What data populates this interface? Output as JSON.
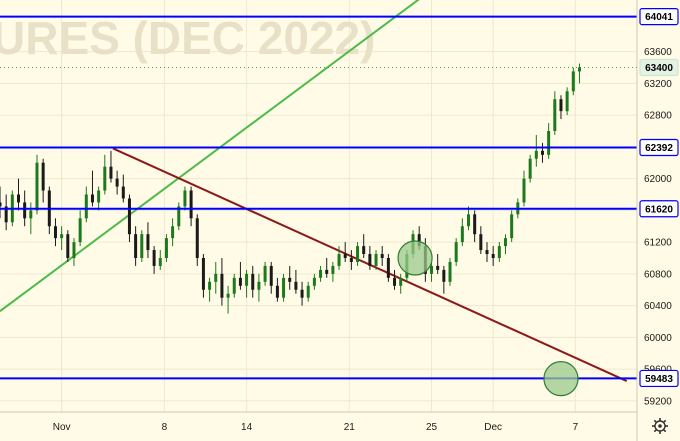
{
  "watermark": "URES (DEC 2022)",
  "chart_data": {
    "type": "candlestick",
    "colors": {
      "background": "#fffbe6",
      "up": "#1b7a1b",
      "down": "#1a1a1a",
      "level_line": "#0000ff",
      "trendline_up": "#4cbb4c",
      "trendline_down": "#8b1a1a",
      "circle_fill": "#9bc98b",
      "circle_stroke": "#2e7d32",
      "dotted_price_line": "#3aa05a",
      "watermark": "#e8e1c8"
    },
    "y_axis": {
      "position": "right",
      "ylim": [
        59060,
        64250
      ],
      "ticks": [
        59200,
        59600,
        60000,
        60400,
        60800,
        61200,
        61600,
        62000,
        62400,
        62800,
        63200,
        63600
      ]
    },
    "x_axis": {
      "labels": [
        {
          "label": "Nov",
          "index": 0
        },
        {
          "label": "8",
          "index": 5
        },
        {
          "label": "14",
          "index": 9
        },
        {
          "label": "21",
          "index": 14
        },
        {
          "label": "25",
          "index": 18
        },
        {
          "label": "Dec",
          "index": 21
        },
        {
          "label": "7",
          "index": 25
        }
      ],
      "index_range": [
        -3,
        28
      ]
    },
    "levels": [
      {
        "value": 64041,
        "label": "64041"
      },
      {
        "value": 62392,
        "label": "62392"
      },
      {
        "value": 61620,
        "label": "61620"
      },
      {
        "value": 59483,
        "label": "59483"
      }
    ],
    "last_price": {
      "value": 63400,
      "label": "63400"
    },
    "trendlines": [
      {
        "kind": "support",
        "from": {
          "index": -3,
          "value": 60330
        },
        "to": {
          "index": 17.6,
          "value": 64300
        }
      },
      {
        "kind": "resistance",
        "from": {
          "index": 2.5,
          "value": 62380
        },
        "to": {
          "index": 27.5,
          "value": 59450
        }
      }
    ],
    "circles": [
      {
        "index": 17.2,
        "value": 61000
      },
      {
        "index": 24.3,
        "value": 59480
      }
    ],
    "series": [
      {
        "values": [
          [
            -3,
            61700,
            61900,
            61500,
            61650
          ],
          [
            -2.7,
            61650,
            61800,
            61350,
            61450
          ],
          [
            -2.4,
            61450,
            61850,
            61400,
            61800
          ],
          [
            -2.1,
            61800,
            62000,
            61600,
            61700
          ],
          [
            -1.8,
            61700,
            61850,
            61400,
            61500
          ],
          [
            -1.5,
            61500,
            61700,
            61300,
            61600
          ],
          [
            -1.2,
            61600,
            62300,
            61550,
            62200
          ],
          [
            -0.9,
            62200,
            62250,
            61700,
            61850
          ],
          [
            -0.6,
            61850,
            61900,
            61300,
            61400
          ],
          [
            -0.3,
            61400,
            61500,
            61150,
            61250
          ],
          [
            0,
            61250,
            61400,
            61100,
            61300
          ],
          [
            0.3,
            61300,
            61350,
            60950,
            61000
          ],
          [
            0.6,
            61000,
            61250,
            60900,
            61200
          ],
          [
            0.9,
            61200,
            61600,
            61150,
            61500
          ],
          [
            1.2,
            61500,
            61900,
            61450,
            61800
          ],
          [
            1.5,
            61800,
            62100,
            61650,
            61700
          ],
          [
            1.8,
            61700,
            61900,
            61600,
            61850
          ],
          [
            2.1,
            61850,
            62300,
            61800,
            62150
          ],
          [
            2.4,
            62150,
            62350,
            61950,
            62000
          ],
          [
            2.7,
            62000,
            62100,
            61800,
            61900
          ],
          [
            3,
            61900,
            62050,
            61700,
            61750
          ],
          [
            3.3,
            61750,
            61800,
            61200,
            61300
          ],
          [
            3.6,
            61300,
            61400,
            60900,
            61000
          ],
          [
            3.9,
            61000,
            61350,
            60950,
            61300
          ],
          [
            4.2,
            61300,
            61450,
            61000,
            61100
          ],
          [
            4.5,
            61100,
            61150,
            60800,
            60900
          ],
          [
            4.8,
            60900,
            61100,
            60850,
            61000
          ],
          [
            5.1,
            61000,
            61300,
            60950,
            61250
          ],
          [
            5.4,
            61250,
            61500,
            61150,
            61400
          ],
          [
            5.7,
            61400,
            61700,
            61350,
            61650
          ],
          [
            6,
            61650,
            61900,
            61600,
            61850
          ],
          [
            6.3,
            61850,
            61900,
            61400,
            61500
          ],
          [
            6.6,
            61500,
            61550,
            60900,
            61000
          ],
          [
            6.9,
            61000,
            61050,
            60500,
            60600
          ],
          [
            7.2,
            60600,
            60750,
            60450,
            60700
          ],
          [
            7.5,
            60700,
            60950,
            60550,
            60800
          ],
          [
            7.8,
            60800,
            61000,
            60400,
            60500
          ],
          [
            8.1,
            60500,
            60650,
            60300,
            60550
          ],
          [
            8.4,
            60550,
            60800,
            60500,
            60750
          ],
          [
            8.7,
            60750,
            60950,
            60600,
            60650
          ],
          [
            9,
            60650,
            60850,
            60500,
            60800
          ],
          [
            9.3,
            60800,
            60900,
            60500,
            60600
          ],
          [
            9.6,
            60600,
            60800,
            60450,
            60700
          ],
          [
            9.9,
            60700,
            60950,
            60650,
            60900
          ],
          [
            10.2,
            60900,
            60950,
            60550,
            60650
          ],
          [
            10.5,
            60650,
            60750,
            60450,
            60500
          ],
          [
            10.8,
            60500,
            60800,
            60450,
            60750
          ],
          [
            11.1,
            60750,
            60900,
            60600,
            60700
          ],
          [
            11.4,
            60700,
            60850,
            60550,
            60600
          ],
          [
            11.7,
            60600,
            60700,
            60400,
            60500
          ],
          [
            12,
            60500,
            60700,
            60450,
            60650
          ],
          [
            12.3,
            60650,
            60800,
            60600,
            60750
          ],
          [
            12.6,
            60750,
            60900,
            60700,
            60850
          ],
          [
            12.9,
            60850,
            61000,
            60750,
            60800
          ],
          [
            13.2,
            60800,
            60950,
            60700,
            60900
          ],
          [
            13.5,
            60900,
            61150,
            60850,
            61050
          ],
          [
            13.8,
            61050,
            61200,
            60950,
            61000
          ],
          [
            14.1,
            61000,
            61100,
            60850,
            60950
          ],
          [
            14.4,
            60950,
            61200,
            60900,
            61150
          ],
          [
            14.7,
            61150,
            61300,
            61000,
            61050
          ],
          [
            15,
            61050,
            61150,
            60850,
            60900
          ],
          [
            15.3,
            60900,
            61100,
            60850,
            61050
          ],
          [
            15.6,
            61050,
            61150,
            60900,
            61000
          ],
          [
            15.9,
            61000,
            61050,
            60700,
            60750
          ],
          [
            16.2,
            60750,
            60850,
            60600,
            60650
          ],
          [
            16.5,
            60650,
            60800,
            60550,
            60750
          ],
          [
            16.8,
            60750,
            61100,
            60700,
            61050
          ],
          [
            17.1,
            61050,
            61350,
            61000,
            61300
          ],
          [
            17.4,
            61300,
            61400,
            61100,
            61150
          ],
          [
            17.7,
            61150,
            61250,
            60700,
            60800
          ],
          [
            18,
            60800,
            60950,
            60700,
            60900
          ],
          [
            18.3,
            60900,
            61050,
            60800,
            60850
          ],
          [
            18.6,
            60850,
            60900,
            60550,
            60700
          ],
          [
            18.9,
            60700,
            61000,
            60650,
            60950
          ],
          [
            19.2,
            60950,
            61250,
            60900,
            61200
          ],
          [
            19.5,
            61200,
            61500,
            61150,
            61400
          ],
          [
            19.8,
            61400,
            61650,
            61350,
            61550
          ],
          [
            20.1,
            61550,
            61600,
            61200,
            61300
          ],
          [
            20.4,
            61300,
            61400,
            61050,
            61100
          ],
          [
            20.7,
            61100,
            61200,
            60950,
            61050
          ],
          [
            21,
            61050,
            61150,
            60900,
            61000
          ],
          [
            21.3,
            61000,
            61200,
            60950,
            61150
          ],
          [
            21.6,
            61150,
            61300,
            61050,
            61250
          ],
          [
            21.9,
            61250,
            61600,
            61200,
            61550
          ],
          [
            22.2,
            61550,
            61750,
            61500,
            61700
          ],
          [
            22.5,
            61700,
            62100,
            61650,
            62000
          ],
          [
            22.8,
            62000,
            62300,
            61950,
            62250
          ],
          [
            23.1,
            62250,
            62550,
            62150,
            62350
          ],
          [
            23.4,
            62350,
            62450,
            62200,
            62300
          ],
          [
            23.7,
            62300,
            62700,
            62250,
            62600
          ],
          [
            24,
            62600,
            63100,
            62550,
            63000
          ],
          [
            24.3,
            63000,
            63050,
            62750,
            62850
          ],
          [
            24.6,
            62850,
            63150,
            62800,
            63100
          ],
          [
            24.9,
            63100,
            63400,
            63050,
            63350
          ],
          [
            25.2,
            63350,
            63450,
            63200,
            63400
          ]
        ]
      }
    ]
  }
}
